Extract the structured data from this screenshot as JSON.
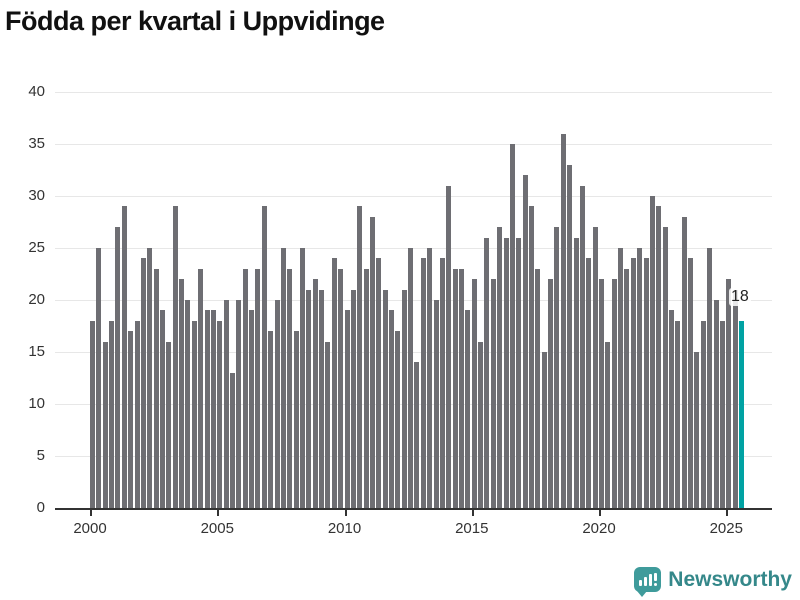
{
  "title": "Födda per kvartal i Uppvidinge",
  "chart_data": {
    "type": "bar",
    "title": "Födda per kvartal i Uppvidinge",
    "start": "2000-Q1",
    "period": "quarterly",
    "values": [
      18,
      25,
      16,
      18,
      27,
      29,
      17,
      18,
      24,
      25,
      23,
      19,
      16,
      29,
      22,
      20,
      18,
      23,
      19,
      19,
      18,
      20,
      13,
      20,
      23,
      19,
      23,
      29,
      17,
      20,
      25,
      23,
      17,
      25,
      21,
      22,
      21,
      16,
      24,
      23,
      19,
      21,
      29,
      23,
      28,
      24,
      21,
      19,
      17,
      21,
      25,
      14,
      24,
      25,
      20,
      24,
      31,
      23,
      23,
      19,
      22,
      16,
      26,
      22,
      27,
      26,
      35,
      26,
      32,
      29,
      23,
      15,
      22,
      27,
      36,
      33,
      26,
      31,
      24,
      27,
      22,
      16,
      22,
      25,
      23,
      24,
      25,
      24,
      30,
      29,
      27,
      19,
      18,
      28,
      24,
      15,
      18,
      25,
      20,
      18,
      22,
      21,
      18
    ],
    "years": [
      2000,
      2001,
      2002,
      2003,
      2004,
      2005,
      2006,
      2007,
      2008,
      2009,
      2010,
      2011,
      2012,
      2013,
      2014,
      2015,
      2016,
      2017,
      2018,
      2019,
      2020,
      2021,
      2022,
      2023,
      2024,
      2025
    ],
    "x_tick_labels": [
      "2000",
      "2005",
      "2010",
      "2015",
      "2020",
      "2025"
    ],
    "y_tick_labels": [
      "0",
      "5",
      "10",
      "15",
      "20",
      "25",
      "30",
      "35",
      "40"
    ],
    "ylim": [
      0,
      40
    ],
    "grid": true,
    "legend": "none",
    "bar_color": "#6e6e73",
    "highlight_index": 102,
    "highlight_color": "#00a2a3",
    "highlight_value_label": "18"
  },
  "footer": {
    "brand": "Newsworthy",
    "brand_color": "#35888a",
    "icon": "newsworthy-logo-icon"
  }
}
